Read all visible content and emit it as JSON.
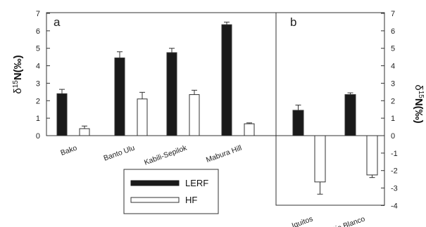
{
  "chart_data": [
    {
      "panel": "a",
      "type": "bar",
      "categories": [
        "Bako",
        "Banto Ulu",
        "Kabili-Sepilok",
        "Mabura Hill"
      ],
      "series": [
        {
          "name": "LERF",
          "values": [
            2.4,
            4.45,
            4.75,
            6.35
          ],
          "errors": [
            0.25,
            0.35,
            0.25,
            0.15
          ]
        },
        {
          "name": "HF",
          "values": [
            0.4,
            2.1,
            2.35,
            0.68
          ],
          "errors": [
            0.15,
            0.38,
            0.25,
            0.05
          ]
        }
      ],
      "ylabel_prefix": "δ",
      "ylabel_sup": "15",
      "ylabel_main": "N(‰)",
      "ylim": [
        0,
        7
      ],
      "yticks": [
        "0",
        "1",
        "2",
        "3",
        "4",
        "5",
        "6",
        "7"
      ]
    },
    {
      "panel": "b",
      "type": "bar",
      "categories": [
        "Iquitos",
        "Rio Blanco"
      ],
      "series": [
        {
          "name": "LERF",
          "values": [
            1.45,
            2.35
          ],
          "errors": [
            0.3,
            0.1
          ]
        },
        {
          "name": "HF",
          "values": [
            -2.65,
            -2.25
          ],
          "errors": [
            0.7,
            0.15
          ]
        }
      ],
      "ylabel_prefix": "δ",
      "ylabel_sup": "15",
      "ylabel_main": "N(‰)",
      "ylim": [
        -4,
        7
      ],
      "yticks": [
        "-4",
        "-3",
        "-2",
        "-1",
        "0",
        "1",
        "2",
        "3",
        "4",
        "5",
        "6",
        "7"
      ]
    }
  ],
  "legend": {
    "items": [
      {
        "label": "LERF",
        "color": "#1a1a1a"
      },
      {
        "label": "HF",
        "color": "#ffffff"
      }
    ]
  },
  "colors": {
    "lerf": "#1a1a1a",
    "hf": "#ffffff",
    "stroke": "#333333"
  }
}
